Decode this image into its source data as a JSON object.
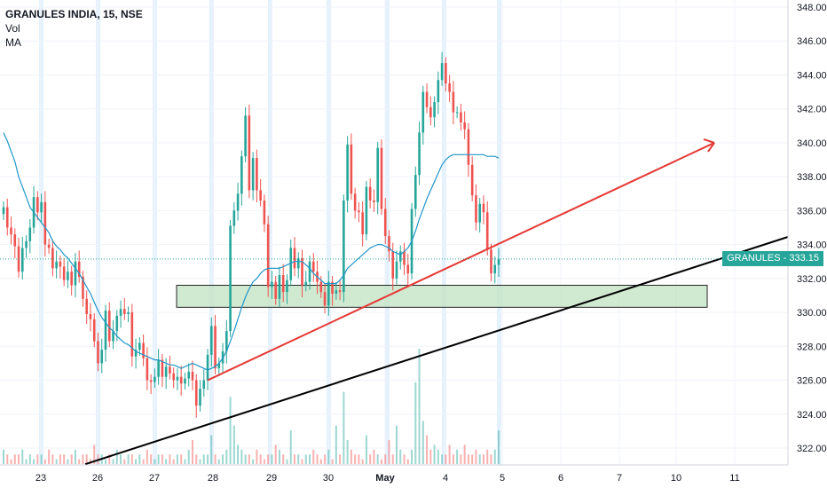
{
  "legend": {
    "symbol": "GRANULES INDIA, 15, NSE",
    "indicator_vol": "Vol",
    "indicator_ma": "MA"
  },
  "price_tag": {
    "text": "GRANULES - 333.15",
    "color": "#26a69a"
  },
  "colors": {
    "up": "#26a69a",
    "down": "#ef5350",
    "ma": "#2196c8",
    "trend_red": "#e53935",
    "trend_black": "#000000",
    "zone_fill": "#c8e6c9",
    "session_band": "#e3f2fd"
  },
  "chart_data": {
    "type": "line",
    "title": "GRANULES INDIA, 15, NSE",
    "xlabel": "",
    "ylabel": "",
    "ylim": [
      321,
      348.5
    ],
    "y_ticks": [
      "348.00",
      "346.00",
      "344.00",
      "342.00",
      "340.00",
      "338.00",
      "336.00",
      "334.00",
      "332.00",
      "330.00",
      "328.00",
      "326.00",
      "324.00",
      "322.00"
    ],
    "x_ticks": [
      "23",
      "26",
      "27",
      "28",
      "29",
      "30",
      "May",
      "4",
      "5",
      "6",
      "7",
      "10",
      "11"
    ],
    "last_price": 333.15,
    "series": [
      {
        "kind": "price",
        "values": [
          336.2,
          335.0,
          334.6,
          333.9,
          332.4,
          333.8,
          334.2,
          335.0,
          336.8,
          335.9,
          336.5,
          334.0,
          333.8,
          332.6,
          333.0,
          332.7,
          331.9,
          332.4,
          331.6,
          333.0,
          332.1,
          330.8,
          329.9,
          329.6,
          328.3,
          327.0,
          327.8,
          330.1,
          328.3,
          328.9,
          329.8,
          330.2,
          329.9,
          330.0,
          327.4,
          327.8,
          328.2,
          327.3,
          326.0,
          325.9,
          326.2,
          327.2,
          326.2,
          326.8,
          326.4,
          326.0,
          326.2,
          325.8,
          326.1,
          326.5,
          326.0,
          324.5,
          325.5,
          326.0,
          327.5,
          329.2,
          326.7,
          327.0,
          327.7,
          328.9,
          335.1,
          336.0,
          337.0,
          339.2,
          341.6,
          337.2,
          339.1,
          337.2,
          336.6,
          335.2,
          331.5,
          331.8,
          330.8,
          332.2,
          331.2,
          331.9,
          333.8,
          332.6,
          333.2,
          331.6,
          331.8,
          333.0,
          332.4,
          331.8,
          331.2,
          330.4,
          331.8,
          331.1,
          331.3,
          331.2,
          336.6,
          339.9,
          337.0,
          336.0,
          335.9,
          334.6,
          337.4,
          336.6,
          336.5,
          339.7,
          336.1,
          334.5,
          333.6,
          332.0,
          333.0,
          333.6,
          332.8,
          332.3,
          336.1,
          338.1,
          340.6,
          343.0,
          342.1,
          341.5,
          342.4,
          343.7,
          344.7,
          343.5,
          343.0,
          341.8,
          341.8,
          341.2,
          340.8,
          338.7,
          336.9,
          335.3,
          336.4,
          335.9,
          333.7,
          332.3,
          332.8,
          333.15
        ]
      },
      {
        "kind": "moving_average",
        "values": [
          340.6,
          340.1,
          339.5,
          338.9,
          338.0,
          337.4,
          336.8,
          336.2,
          335.9,
          335.6,
          335.3,
          335.0,
          334.7,
          334.2,
          333.9,
          333.7,
          333.4,
          333.2,
          332.9,
          332.6,
          332.3,
          331.9,
          331.5,
          331.1,
          330.6,
          330.1,
          329.7,
          329.4,
          329.1,
          328.9,
          328.6,
          328.4,
          328.2,
          328.1,
          327.9,
          327.7,
          327.6,
          327.5,
          327.4,
          327.3,
          327.2,
          327.2,
          327.1,
          327.0,
          326.9,
          326.9,
          326.8,
          326.7,
          326.8,
          326.9,
          327.0,
          326.9,
          326.8,
          326.7,
          326.6,
          326.7,
          326.8,
          327.0,
          327.3,
          327.7,
          328.3,
          328.9,
          329.6,
          330.3,
          330.9,
          331.4,
          331.8,
          332.0,
          332.3,
          332.5,
          332.6,
          332.6,
          332.6,
          332.6,
          332.7,
          332.8,
          332.9,
          333.0,
          333.0,
          333.0,
          332.8,
          332.6,
          332.3,
          332.1,
          331.9,
          331.7,
          331.7,
          331.7,
          331.7,
          331.9,
          332.2,
          332.6,
          332.8,
          333.0,
          333.2,
          333.4,
          333.6,
          333.8,
          333.9,
          334.0,
          334.0,
          333.9,
          333.8,
          333.6,
          333.5,
          333.4,
          333.6,
          333.8,
          334.2,
          334.8,
          335.5,
          336.1,
          336.7,
          337.2,
          337.7,
          338.2,
          338.7,
          339.0,
          339.2,
          339.3,
          339.3,
          339.3,
          339.3,
          339.3,
          339.3,
          339.3,
          339.3,
          339.3,
          339.2,
          339.2,
          339.2,
          339.1
        ]
      },
      {
        "kind": "volume",
        "values": [
          3,
          2,
          1,
          2,
          2,
          3,
          1,
          2,
          1,
          2,
          2,
          1,
          3,
          2,
          1,
          2,
          2,
          1,
          2,
          3,
          1,
          2,
          2,
          1,
          4,
          2,
          2,
          1,
          2,
          1,
          3,
          2,
          1,
          2,
          2,
          1,
          2,
          1,
          3,
          2,
          1,
          2,
          2,
          1,
          2,
          1,
          2,
          2,
          1,
          3,
          5,
          2,
          1,
          2,
          2,
          6,
          2,
          1,
          2,
          3,
          14,
          8,
          4,
          3,
          2,
          2,
          1,
          3,
          2,
          1,
          2,
          2,
          4,
          3,
          2,
          1,
          7,
          2,
          2,
          1,
          2,
          2,
          3,
          2,
          1,
          2,
          3,
          1,
          8,
          2,
          15,
          5,
          3,
          2,
          2,
          1,
          6,
          2,
          3,
          2,
          1,
          2,
          5,
          2,
          8,
          3,
          2,
          1,
          3,
          17,
          24,
          9,
          6,
          3,
          4,
          3,
          2,
          2,
          4,
          2,
          3,
          2,
          4,
          2,
          2,
          3,
          2,
          2,
          3,
          2,
          3,
          7
        ]
      }
    ],
    "annotations": [
      {
        "kind": "zone",
        "y_range": [
          330.3,
          331.6
        ]
      },
      {
        "kind": "trendline_red",
        "from": [
          326.0
        ],
        "to": [
          340.0
        ]
      },
      {
        "kind": "trendline_black",
        "from": [
          321.0
        ],
        "to": [
          334.5
        ]
      }
    ]
  }
}
